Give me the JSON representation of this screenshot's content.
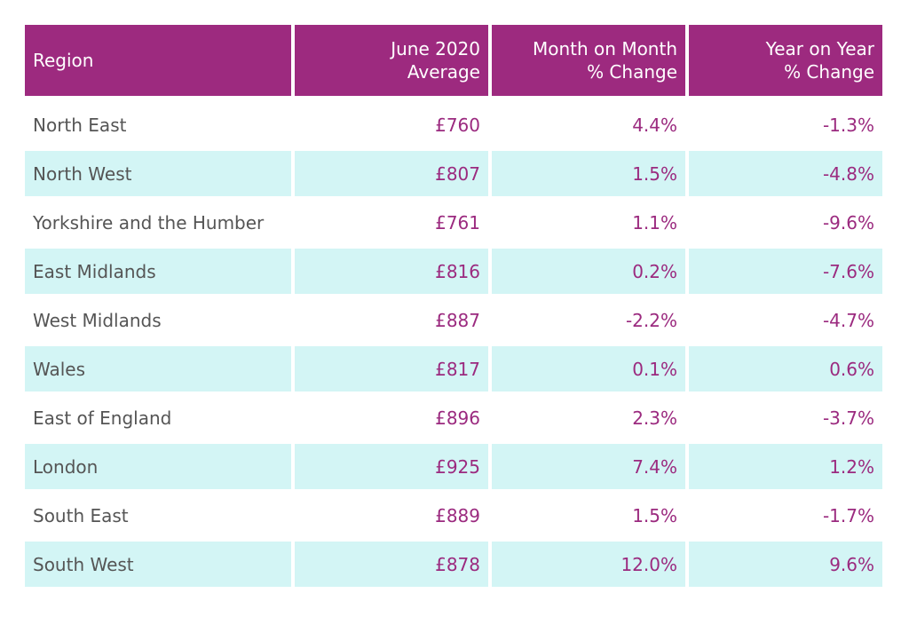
{
  "table": {
    "header": [
      "Region",
      "June 2020\nAverage",
      "Month on Month\n% Change",
      "Year on Year\n% Change"
    ],
    "rows": [
      [
        "North East",
        "£760",
        "4.4%",
        "-1.3%"
      ],
      [
        "North West",
        "£807",
        "1.5%",
        "-4.8%"
      ],
      [
        "Yorkshire and the Humber",
        "£761",
        "1.1%",
        "-9.6%"
      ],
      [
        "East Midlands",
        "£816",
        "0.2%",
        "-7.6%"
      ],
      [
        "West Midlands",
        "£887",
        "-2.2%",
        "-4.7%"
      ],
      [
        "Wales",
        "£817",
        "0.1%",
        "0.6%"
      ],
      [
        "East of England",
        "£896",
        "2.3%",
        "-3.7%"
      ],
      [
        "London",
        "£925",
        "7.4%",
        "1.2%"
      ],
      [
        "South East",
        "£889",
        "1.5%",
        "-1.7%"
      ],
      [
        "South West",
        "£878",
        "12.0%",
        "9.6%"
      ]
    ]
  }
}
